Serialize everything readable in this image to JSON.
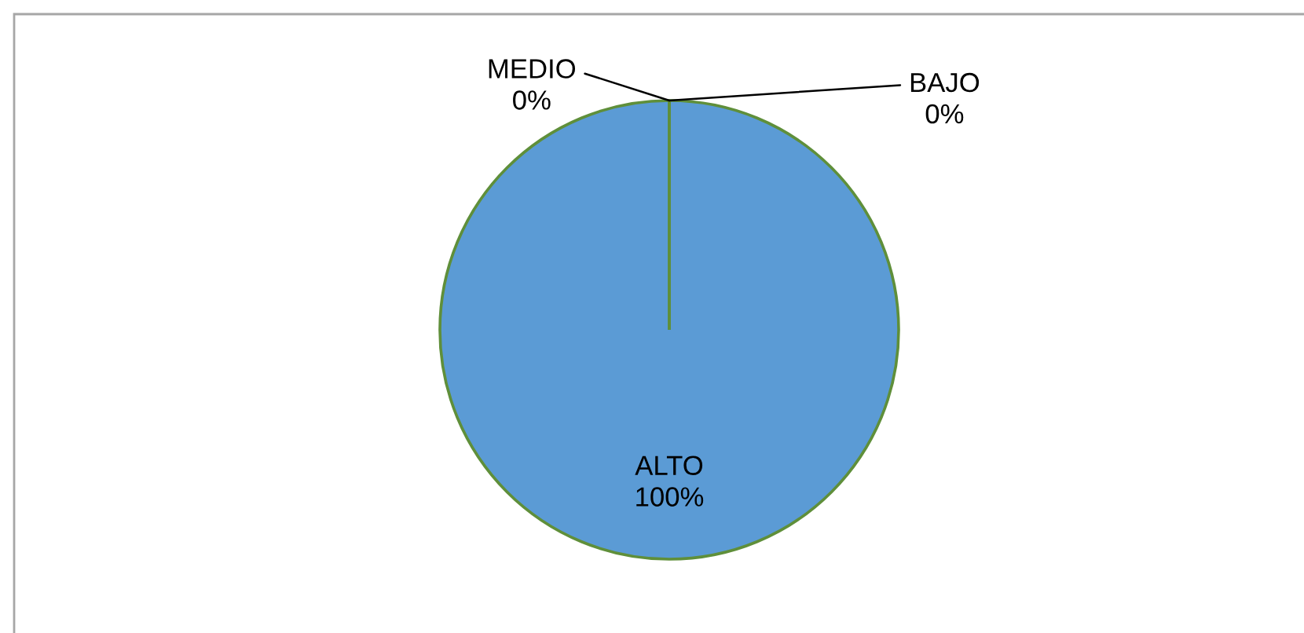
{
  "chart_data": {
    "type": "pie",
    "categories": [
      "ALTO",
      "MEDIO",
      "BAJO"
    ],
    "values": [
      100,
      0,
      0
    ],
    "colors": [
      "#5b9bd5",
      "#ed7d31",
      "#a5a5a5"
    ],
    "value_labels": [
      "100%",
      "0%",
      "0%"
    ]
  }
}
